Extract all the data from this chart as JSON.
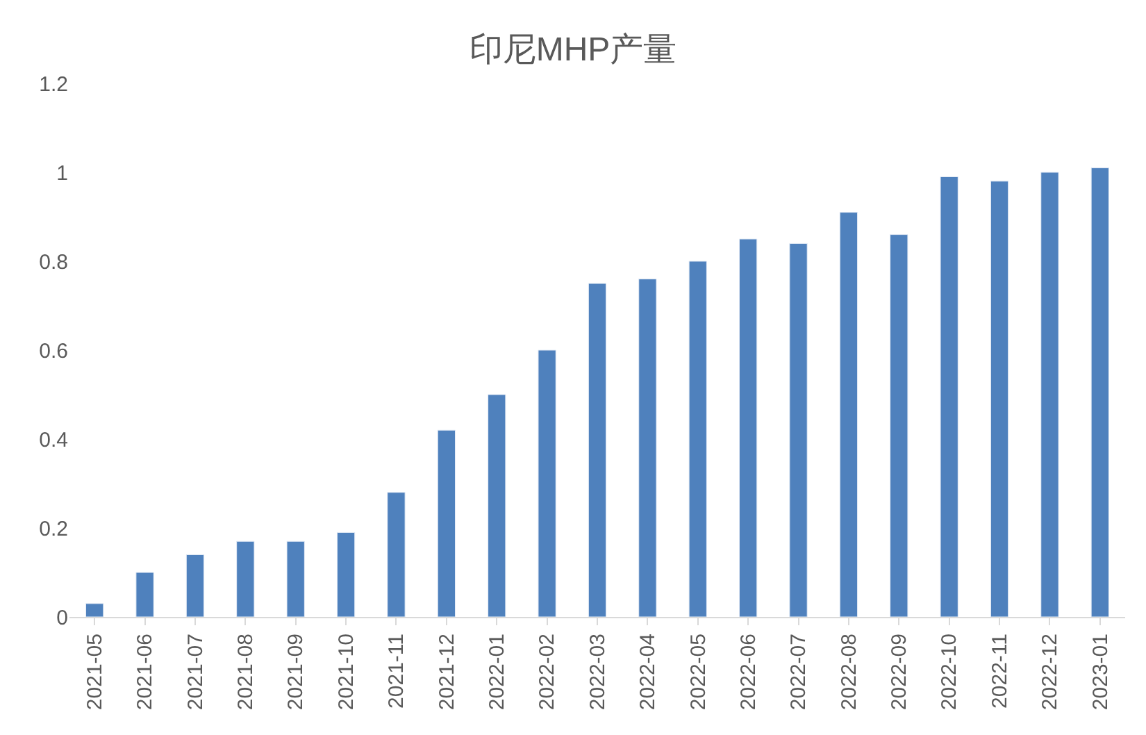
{
  "chart_data": {
    "type": "bar",
    "title": "印尼MHP产量",
    "categories": [
      "2021-05",
      "2021-06",
      "2021-07",
      "2021-08",
      "2021-09",
      "2021-10",
      "2021-11",
      "2021-12",
      "2022-01",
      "2022-02",
      "2022-03",
      "2022-04",
      "2022-05",
      "2022-06",
      "2022-07",
      "2022-08",
      "2022-09",
      "2022-10",
      "2022-11",
      "2022-12",
      "2023-01"
    ],
    "values": [
      0.03,
      0.1,
      0.14,
      0.17,
      0.17,
      0.19,
      0.28,
      0.42,
      0.5,
      0.6,
      0.75,
      0.76,
      0.8,
      0.85,
      0.84,
      0.91,
      0.86,
      0.99,
      0.98,
      1.0,
      1.01
    ],
    "color": "#4f81bd",
    "ylim": [
      0,
      1.2
    ],
    "yticks": [
      0,
      0.2,
      0.4,
      0.6,
      0.8,
      1,
      1.2
    ],
    "legend": false
  }
}
